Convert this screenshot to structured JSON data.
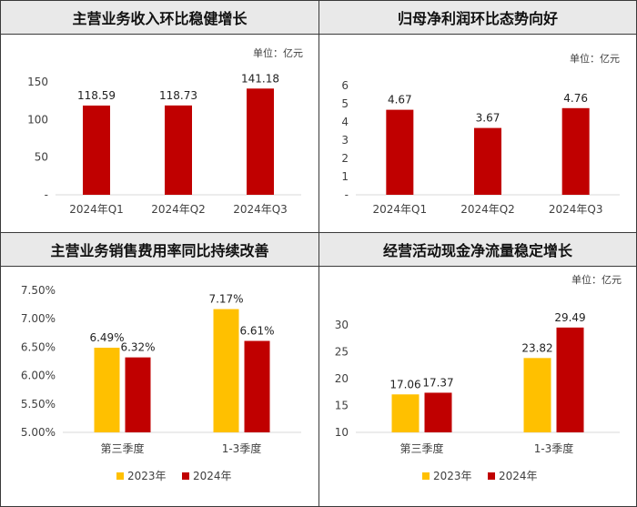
{
  "colors": {
    "red": "#c00000",
    "gold": "#ffc000",
    "axis": "#d9d9d9",
    "text": "#404040"
  },
  "chart_data": [
    {
      "type": "bar",
      "title": "主营业务收入环比稳健增长",
      "unit": "单位：亿元",
      "categories": [
        "2024年Q1",
        "2024年Q2",
        "2024年Q3"
      ],
      "series": [
        {
          "values": [
            118.59,
            118.73,
            141.18
          ]
        }
      ],
      "value_labels": [
        "118.59",
        "118.73",
        "141.18"
      ],
      "ylim": [
        0,
        150
      ],
      "yticks": [
        150,
        100,
        50,
        0
      ],
      "ytick_labels": [
        "150",
        "100",
        "50",
        "-"
      ]
    },
    {
      "type": "bar",
      "title": "归母净利润环比态势向好",
      "unit": "单位：亿元",
      "categories": [
        "2024年Q1",
        "2024年Q2",
        "2024年Q3"
      ],
      "series": [
        {
          "values": [
            4.67,
            3.67,
            4.76
          ]
        }
      ],
      "value_labels": [
        "4.67",
        "3.67",
        "4.76"
      ],
      "ylim": [
        0,
        6
      ],
      "yticks": [
        6,
        5,
        4,
        3,
        2,
        1,
        0
      ],
      "ytick_labels": [
        "6",
        "5",
        "4",
        "3",
        "2",
        "1",
        "-"
      ]
    },
    {
      "type": "bar",
      "title": "主营业务销售费用率同比持续改善",
      "categories": [
        "第三季度",
        "1-3季度"
      ],
      "series": [
        {
          "name": "2023年",
          "values": [
            6.49,
            7.17
          ],
          "value_labels": [
            "6.49%",
            "7.17%"
          ]
        },
        {
          "name": "2024年",
          "values": [
            6.32,
            6.61
          ],
          "value_labels": [
            "6.32%",
            "6.61%"
          ]
        }
      ],
      "ylim": [
        5.0,
        7.5
      ],
      "yticks": [
        7.5,
        7.0,
        6.5,
        6.0,
        5.5,
        5.0
      ],
      "ytick_labels": [
        "7.50%",
        "7.00%",
        "6.50%",
        "6.00%",
        "5.50%",
        "5.00%"
      ],
      "legend": "bottom"
    },
    {
      "type": "bar",
      "title": "经营活动现金净流量稳定增长",
      "unit": "单位：亿元",
      "categories": [
        "第三季度",
        "1-3季度"
      ],
      "series": [
        {
          "name": "2023年",
          "values": [
            17.06,
            23.82
          ],
          "value_labels": [
            "17.06",
            "23.82"
          ]
        },
        {
          "name": "2024年",
          "values": [
            17.37,
            29.49
          ],
          "value_labels": [
            "17.37",
            "29.49"
          ]
        }
      ],
      "ylim": [
        10,
        32
      ],
      "yticks": [
        30,
        25,
        20,
        15,
        10
      ],
      "ytick_labels": [
        "30",
        "25",
        "20",
        "15",
        "10"
      ],
      "legend": "bottom"
    }
  ]
}
